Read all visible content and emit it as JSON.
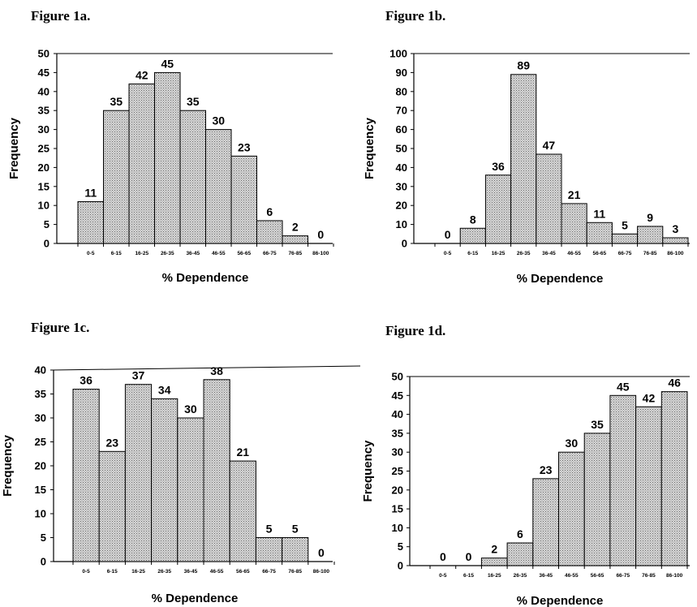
{
  "chart_data": [
    {
      "type": "bar",
      "title": "Figure 1a.",
      "xlabel": "% Dependence",
      "ylabel": "Frequency",
      "ylim": [
        0,
        50
      ],
      "yticks": [
        0,
        5,
        10,
        15,
        20,
        25,
        30,
        35,
        40,
        45,
        50
      ],
      "categories": [
        "0-5",
        "6-15",
        "16-25",
        "26-35",
        "36-45",
        "46-55",
        "56-65",
        "66-75",
        "76-85",
        "86-100"
      ],
      "values": [
        11,
        35,
        42,
        45,
        35,
        30,
        23,
        6,
        2,
        0
      ],
      "grid": false,
      "pattern": "dotted-gray"
    },
    {
      "type": "bar",
      "title": "Figure 1b.",
      "xlabel": "% Dependence",
      "ylabel": "Frequency",
      "ylim": [
        0,
        100
      ],
      "yticks": [
        0,
        10,
        20,
        30,
        40,
        50,
        60,
        70,
        80,
        90,
        100
      ],
      "categories": [
        "0-5",
        "6-15",
        "16-25",
        "26-35",
        "36-45",
        "46-55",
        "56-65",
        "66-75",
        "76-85",
        "86-100"
      ],
      "values": [
        0,
        8,
        36,
        89,
        47,
        21,
        11,
        5,
        9,
        3
      ],
      "grid": false,
      "pattern": "dotted-gray"
    },
    {
      "type": "bar",
      "title": "Figure 1c.",
      "xlabel": "% Dependence",
      "ylabel": "Frequency",
      "ylim": [
        0,
        40
      ],
      "yticks": [
        0,
        5,
        10,
        15,
        20,
        25,
        30,
        35,
        40
      ],
      "categories": [
        "0-5",
        "6-15",
        "16-25",
        "26-35",
        "36-45",
        "46-55",
        "56-65",
        "66-75",
        "76-85",
        "86-100"
      ],
      "values": [
        36,
        23,
        37,
        34,
        30,
        38,
        21,
        5,
        5,
        0
      ],
      "grid": false,
      "pattern": "dotted-gray"
    },
    {
      "type": "bar",
      "title": "Figure 1d.",
      "xlabel": "% Dependence",
      "ylabel": "Frequency",
      "ylim": [
        0,
        50
      ],
      "yticks": [
        0,
        5,
        10,
        15,
        20,
        25,
        30,
        35,
        40,
        45,
        50
      ],
      "categories": [
        "0-5",
        "6-15",
        "16-25",
        "26-35",
        "36-45",
        "46-55",
        "56-65",
        "66-75",
        "76-85",
        "86-100"
      ],
      "values": [
        0,
        0,
        2,
        6,
        23,
        30,
        35,
        45,
        42,
        46
      ],
      "grid": false,
      "pattern": "dotted-gray"
    }
  ],
  "colors": {
    "bar_fill": "#d6d6d6",
    "bar_dot": "#6e6e6e",
    "stroke": "#000000"
  }
}
